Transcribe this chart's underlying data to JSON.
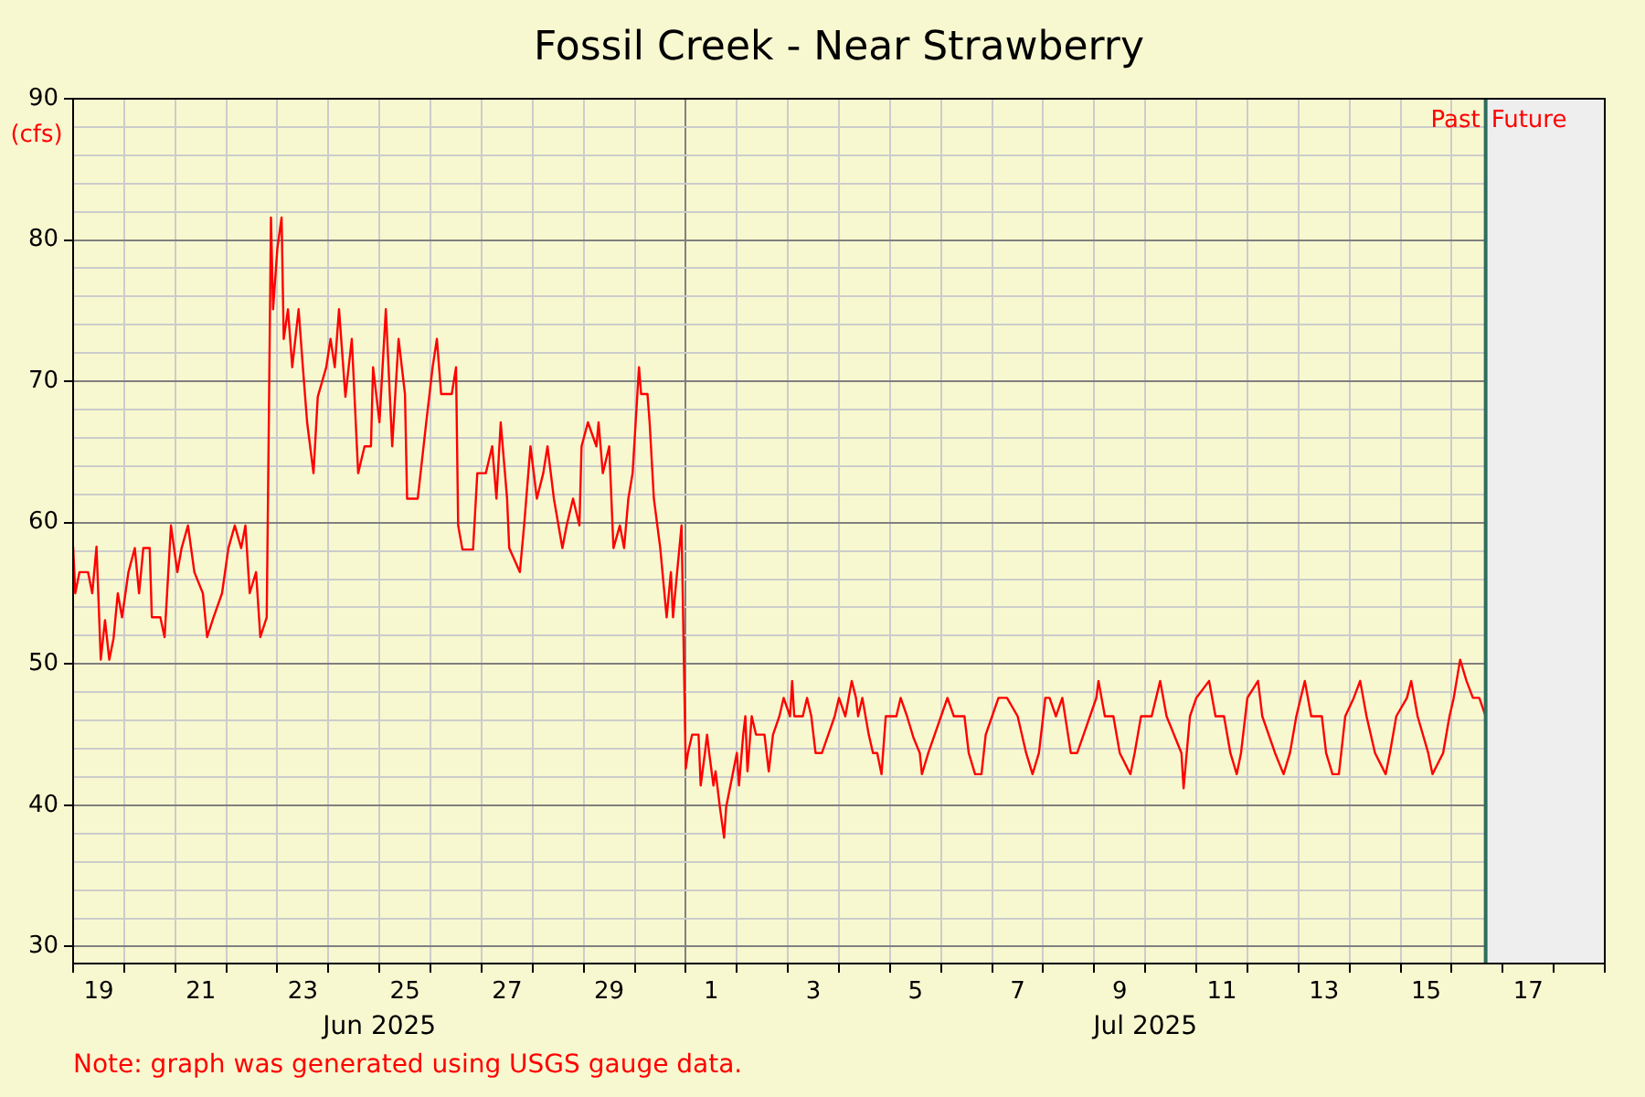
{
  "chart_data": {
    "type": "line",
    "title": "Fossil Creek - Near Strawberry",
    "ylabel": "(cfs)",
    "annotations": [
      "Jun 2025",
      "Jul 2025",
      "Note: graph was generated using USGS gauge data."
    ],
    "xlim": [
      "2025-06-19",
      "2025-07-19"
    ],
    "xticks": [
      {
        "value": "2025-06-19",
        "label": null
      },
      {
        "value": "2025-06-19T12:00",
        "label": "19"
      },
      {
        "value": "2025-06-20",
        "label": null
      },
      {
        "value": "2025-06-21",
        "label": null
      },
      {
        "value": "2025-06-21T12:00",
        "label": "21"
      },
      {
        "value": "2025-06-22",
        "label": null
      },
      {
        "value": "2025-06-23",
        "label": null
      },
      {
        "value": "2025-06-23T12:00",
        "label": "23"
      },
      {
        "value": "2025-06-24",
        "label": null
      },
      {
        "value": "2025-06-25",
        "label": null
      },
      {
        "value": "2025-06-25T12:00",
        "label": "25"
      },
      {
        "value": "2025-06-26",
        "label": null
      },
      {
        "value": "2025-06-27",
        "label": null
      },
      {
        "value": "2025-06-27T12:00",
        "label": "27"
      },
      {
        "value": "2025-06-28",
        "label": null
      },
      {
        "value": "2025-06-29",
        "label": null
      },
      {
        "value": "2025-06-29T12:00",
        "label": "29"
      },
      {
        "value": "2025-06-30",
        "label": null
      },
      {
        "value": "2025-07-01",
        "label": null
      },
      {
        "value": "2025-07-01T12:00",
        "label": "1"
      },
      {
        "value": "2025-07-02",
        "label": null
      },
      {
        "value": "2025-07-03",
        "label": null
      },
      {
        "value": "2025-07-03T12:00",
        "label": "3"
      },
      {
        "value": "2025-07-04",
        "label": null
      },
      {
        "value": "2025-07-05",
        "label": null
      },
      {
        "value": "2025-07-05T12:00",
        "label": "5"
      },
      {
        "value": "2025-07-06",
        "label": null
      },
      {
        "value": "2025-07-07",
        "label": null
      },
      {
        "value": "2025-07-07T12:00",
        "label": "7"
      },
      {
        "value": "2025-07-08",
        "label": null
      },
      {
        "value": "2025-07-09",
        "label": null
      },
      {
        "value": "2025-07-09T12:00",
        "label": "9"
      },
      {
        "value": "2025-07-10",
        "label": null
      },
      {
        "value": "2025-07-11",
        "label": null
      },
      {
        "value": "2025-07-11T12:00",
        "label": "11"
      },
      {
        "value": "2025-07-12",
        "label": null
      },
      {
        "value": "2025-07-13",
        "label": null
      },
      {
        "value": "2025-07-13T12:00",
        "label": "13"
      },
      {
        "value": "2025-07-14",
        "label": null
      },
      {
        "value": "2025-07-15",
        "label": null
      },
      {
        "value": "2025-07-15T12:00",
        "label": "15"
      },
      {
        "value": "2025-07-16",
        "label": null
      },
      {
        "value": "2025-07-17",
        "label": null
      },
      {
        "value": "2025-07-17T12:00",
        "label": "17"
      },
      {
        "value": "2025-07-18",
        "label": null
      },
      {
        "value": "2025-07-19",
        "label": null
      }
    ],
    "ylim": [
      28.8,
      90
    ],
    "yticks": [
      30,
      {
        "value": 32,
        "label": null
      },
      {
        "value": 34,
        "label": null
      },
      {
        "value": 36,
        "label": null
      },
      {
        "value": 38,
        "label": null
      },
      40,
      {
        "value": 42,
        "label": null
      },
      {
        "value": 44,
        "label": null
      },
      {
        "value": 46,
        "label": null
      },
      {
        "value": 48,
        "label": null
      },
      50,
      {
        "value": 52,
        "label": null
      },
      {
        "value": 54,
        "label": null
      },
      {
        "value": 56,
        "label": null
      },
      {
        "value": 58,
        "label": null
      },
      60,
      {
        "value": 62,
        "label": null
      },
      {
        "value": 64,
        "label": null
      },
      {
        "value": 66,
        "label": null
      },
      {
        "value": 68,
        "label": null
      },
      70,
      {
        "value": 72,
        "label": null
      },
      {
        "value": 74,
        "label": null
      },
      {
        "value": 76,
        "label": null
      },
      {
        "value": 78,
        "label": null
      },
      80,
      {
        "value": 82,
        "label": null
      },
      {
        "value": 84,
        "label": null
      },
      {
        "value": 86,
        "label": null
      },
      {
        "value": 88,
        "label": null
      },
      90
    ],
    "grid": true,
    "legend": false,
    "marker": "none",
    "line_style": "solid",
    "ref_lines": [
      {
        "axis": "x",
        "value": "2025-07-16T16:00",
        "label": "Past",
        "color": "#2e6e5e"
      }
    ],
    "bands": [
      {
        "axis": "x",
        "from": "2025-07-16T16:00",
        "to": "2025-07-19",
        "label": "Future",
        "color": "#eeeeee"
      }
    ],
    "series": [
      {
        "color": "#ff0000",
        "x": [
          "2025-06-19T00:00",
          "2025-06-19T01:00",
          "2025-06-19T03:00",
          "2025-06-19T07:00",
          "2025-06-19T09:00",
          "2025-06-19T11:00",
          "2025-06-19T13:00",
          "2025-06-19T15:00",
          "2025-06-19T17:00",
          "2025-06-19T19:00",
          "2025-06-19T21:00",
          "2025-06-19T23:00",
          "2025-06-20T02:00",
          "2025-06-20T05:00",
          "2025-06-20T07:00",
          "2025-06-20T09:00",
          "2025-06-20T12:00",
          "2025-06-20T13:00",
          "2025-06-20T17:00",
          "2025-06-20T19:00",
          "2025-06-20T22:00",
          "2025-06-21T01:00",
          "2025-06-21T03:00",
          "2025-06-21T06:00",
          "2025-06-21T09:00",
          "2025-06-21T13:00",
          "2025-06-21T15:00",
          "2025-06-21T18:00",
          "2025-06-21T22:00",
          "2025-06-22T01:00",
          "2025-06-22T04:00",
          "2025-06-22T07:00",
          "2025-06-22T09:00",
          "2025-06-22T11:00",
          "2025-06-22T14:00",
          "2025-06-22T16:00",
          "2025-06-22T19:00",
          "2025-06-22T20:00",
          "2025-06-22T21:00",
          "2025-06-22T22:00",
          "2025-06-23T00:00",
          "2025-06-23T02:00",
          "2025-06-23T03:00",
          "2025-06-23T05:00",
          "2025-06-23T07:00",
          "2025-06-23T10:00",
          "2025-06-23T12:00",
          "2025-06-23T14:00",
          "2025-06-23T17:00",
          "2025-06-23T19:00",
          "2025-06-23T23:00",
          "2025-06-24T01:00",
          "2025-06-24T03:00",
          "2025-06-24T05:00",
          "2025-06-24T08:00",
          "2025-06-24T11:00",
          "2025-06-24T14:00",
          "2025-06-24T17:00",
          "2025-06-24T20:00",
          "2025-06-24T21:00",
          "2025-06-25T00:00",
          "2025-06-25T03:00",
          "2025-06-25T06:00",
          "2025-06-25T09:00",
          "2025-06-25T12:00",
          "2025-06-25T13:00",
          "2025-06-25T18:00",
          "2025-06-25T22:00",
          "2025-06-26T01:00",
          "2025-06-26T03:00",
          "2025-06-26T05:00",
          "2025-06-26T10:00",
          "2025-06-26T12:00",
          "2025-06-26T13:00",
          "2025-06-26T15:00",
          "2025-06-26T20:00",
          "2025-06-26T22:00",
          "2025-06-27T02:00",
          "2025-06-27T05:00",
          "2025-06-27T07:00",
          "2025-06-27T09:00",
          "2025-06-27T12:00",
          "2025-06-27T13:00",
          "2025-06-27T18:00",
          "2025-06-27T20:00",
          "2025-06-27T23:00",
          "2025-06-28T02:00",
          "2025-06-28T05:00",
          "2025-06-28T07:00",
          "2025-06-28T10:00",
          "2025-06-28T14:00",
          "2025-06-28T16:00",
          "2025-06-28T19:00",
          "2025-06-28T22:00",
          "2025-06-28T23:00",
          "2025-06-29T02:00",
          "2025-06-29T06:00",
          "2025-06-29T07:00",
          "2025-06-29T09:00",
          "2025-06-29T12:00",
          "2025-06-29T14:00",
          "2025-06-29T17:00",
          "2025-06-29T19:00",
          "2025-06-29T21:00",
          "2025-06-29T23:00",
          "2025-06-30T02:00",
          "2025-06-30T03:00",
          "2025-06-30T06:00",
          "2025-06-30T07:00",
          "2025-06-30T09:00",
          "2025-06-30T12:00",
          "2025-06-30T15:00",
          "2025-06-30T17:00",
          "2025-06-30T18:00",
          "2025-06-30T19:00",
          "2025-06-30T21:00",
          "2025-06-30T22:00",
          "2025-07-01T00:00",
          "2025-07-01T01:00",
          "2025-07-01T03:00",
          "2025-07-01T06:00",
          "2025-07-01T07:00",
          "2025-07-01T09:00",
          "2025-07-01T10:00",
          "2025-07-01T11:00",
          "2025-07-01T13:00",
          "2025-07-01T14:00",
          "2025-07-01T16:00",
          "2025-07-01T18:00",
          "2025-07-01T19:00",
          "2025-07-01T21:00",
          "2025-07-02T00:00",
          "2025-07-02T01:00",
          "2025-07-02T03:00",
          "2025-07-02T04:00",
          "2025-07-02T05:00",
          "2025-07-02T07:00",
          "2025-07-02T09:00",
          "2025-07-02T13:00",
          "2025-07-02T15:00",
          "2025-07-02T17:00",
          "2025-07-02T20:00",
          "2025-07-02T22:00",
          "2025-07-03T01:00",
          "2025-07-03T02:00",
          "2025-07-03T03:00",
          "2025-07-03T07:00",
          "2025-07-03T09:00",
          "2025-07-03T11:00",
          "2025-07-03T13:00",
          "2025-07-03T16:00",
          "2025-07-03T19:00",
          "2025-07-03T22:00",
          "2025-07-04T00:00",
          "2025-07-04T03:00",
          "2025-07-04T06:00",
          "2025-07-04T08:00",
          "2025-07-04T09:00",
          "2025-07-04T11:00",
          "2025-07-04T14:00",
          "2025-07-04T16:00",
          "2025-07-04T18:00",
          "2025-07-04T20:00",
          "2025-07-04T22:00",
          "2025-07-05T03:00",
          "2025-07-05T05:00",
          "2025-07-05T08:00",
          "2025-07-05T11:00",
          "2025-07-05T14:00",
          "2025-07-05T15:00",
          "2025-07-05T18:00",
          "2025-07-05T21:00",
          "2025-07-06T00:00",
          "2025-07-06T03:00",
          "2025-07-06T06:00",
          "2025-07-06T11:00",
          "2025-07-06T13:00",
          "2025-07-06T16:00",
          "2025-07-06T19:00",
          "2025-07-06T21:00",
          "2025-07-07T00:00",
          "2025-07-07T03:00",
          "2025-07-07T07:00",
          "2025-07-07T12:00",
          "2025-07-07T16:00",
          "2025-07-07T19:00",
          "2025-07-07T22:00",
          "2025-07-08T01:00",
          "2025-07-08T03:00",
          "2025-07-08T06:00",
          "2025-07-08T09:00",
          "2025-07-08T13:00",
          "2025-07-08T16:00",
          "2025-07-08T19:00",
          "2025-07-08T22:00",
          "2025-07-09T01:00",
          "2025-07-09T02:00",
          "2025-07-09T05:00",
          "2025-07-09T09:00",
          "2025-07-09T12:00",
          "2025-07-09T17:00",
          "2025-07-09T19:00",
          "2025-07-09T22:00",
          "2025-07-10T03:00",
          "2025-07-10T07:00",
          "2025-07-10T10:00",
          "2025-07-10T17:00",
          "2025-07-10T18:00",
          "2025-07-10T21:00",
          "2025-07-11T00:00",
          "2025-07-11T06:00",
          "2025-07-11T09:00",
          "2025-07-11T13:00",
          "2025-07-11T16:00",
          "2025-07-11T19:00",
          "2025-07-11T21:00",
          "2025-07-12T00:00",
          "2025-07-12T05:00",
          "2025-07-12T07:00",
          "2025-07-12T13:00",
          "2025-07-12T17:00",
          "2025-07-12T20:00",
          "2025-07-12T23:00",
          "2025-07-13T03:00",
          "2025-07-13T06:00",
          "2025-07-13T11:00",
          "2025-07-13T13:00",
          "2025-07-13T16:00",
          "2025-07-13T19:00",
          "2025-07-13T22:00",
          "2025-07-14T02:00",
          "2025-07-14T05:00",
          "2025-07-14T08:00",
          "2025-07-14T12:00",
          "2025-07-14T17:00",
          "2025-07-14T19:00",
          "2025-07-14T22:00",
          "2025-07-15T03:00",
          "2025-07-15T05:00",
          "2025-07-15T08:00",
          "2025-07-15T13:00",
          "2025-07-15T15:00",
          "2025-07-15T20:00",
          "2025-07-15T23:00",
          "2025-07-16T01:00",
          "2025-07-16T04:00",
          "2025-07-16T07:00",
          "2025-07-16T10:00",
          "2025-07-16T13:00",
          "2025-07-16T16:00"
        ],
        "values": [
          58.3,
          55,
          56.5,
          56.5,
          55,
          58.3,
          50.3,
          53.1,
          50.3,
          51.8,
          55,
          53.3,
          56.5,
          58.2,
          55,
          58.2,
          58.2,
          53.3,
          53.3,
          51.9,
          59.8,
          56.5,
          58.2,
          59.8,
          56.5,
          55,
          51.9,
          53.3,
          55,
          58.2,
          59.8,
          58.2,
          59.8,
          55,
          56.5,
          51.9,
          53.3,
          67.1,
          81.6,
          75.1,
          79.4,
          81.6,
          73,
          75.1,
          71,
          75.1,
          71,
          67.1,
          63.5,
          68.9,
          71,
          73,
          71,
          75.1,
          68.9,
          73,
          63.5,
          65.4,
          65.4,
          71,
          67.1,
          75.1,
          65.4,
          73,
          69.1,
          61.7,
          61.7,
          67.1,
          71,
          73,
          69.1,
          69.1,
          71,
          59.8,
          58.1,
          58.1,
          63.5,
          63.5,
          65.4,
          61.7,
          67.1,
          61.7,
          58.2,
          56.5,
          59.8,
          65.4,
          61.7,
          63.5,
          65.4,
          61.7,
          58.2,
          59.8,
          61.7,
          59.8,
          65.4,
          67.1,
          65.4,
          67.1,
          63.5,
          65.4,
          58.2,
          59.8,
          58.2,
          61.7,
          63.5,
          71,
          69.1,
          69.1,
          67.1,
          61.7,
          58.2,
          53.3,
          56.5,
          53.3,
          55,
          58.2,
          59.8,
          42.6,
          43.7,
          45,
          45,
          41.4,
          43.7,
          45,
          43.7,
          41.4,
          42.4,
          39.9,
          37.7,
          39.9,
          41.4,
          43.7,
          41.4,
          45,
          46.3,
          42.4,
          46.3,
          45,
          45,
          42.4,
          45,
          46.3,
          47.6,
          46.3,
          48.8,
          46.3,
          46.3,
          47.6,
          46.3,
          43.7,
          43.7,
          45,
          46.3,
          47.6,
          46.3,
          48.8,
          47.6,
          46.3,
          47.6,
          45,
          43.7,
          43.7,
          42.2,
          46.3,
          46.3,
          47.6,
          46.3,
          44.8,
          43.7,
          42.2,
          43.7,
          45,
          46.3,
          47.6,
          46.3,
          46.3,
          43.7,
          42.2,
          42.2,
          45,
          46.3,
          47.6,
          47.6,
          46.3,
          43.7,
          42.2,
          43.7,
          47.6,
          47.6,
          46.3,
          47.6,
          43.7,
          43.7,
          45,
          46.3,
          47.6,
          48.8,
          46.3,
          46.3,
          43.7,
          42.2,
          43.7,
          46.3,
          46.3,
          48.8,
          46.3,
          43.7,
          41.2,
          46.3,
          47.6,
          48.8,
          46.3,
          46.3,
          43.7,
          42.2,
          43.7,
          47.6,
          48.8,
          46.3,
          43.7,
          42.2,
          43.7,
          46.3,
          48.8,
          46.3,
          46.3,
          43.7,
          42.2,
          42.2,
          46.3,
          47.6,
          48.8,
          46.3,
          43.7,
          42.2,
          43.7,
          46.3,
          47.6,
          48.8,
          46.3,
          43.7,
          42.2,
          43.7,
          46.3,
          47.6,
          50.3,
          48.8,
          47.6,
          47.6,
          46.3
        ]
      }
    ]
  }
}
